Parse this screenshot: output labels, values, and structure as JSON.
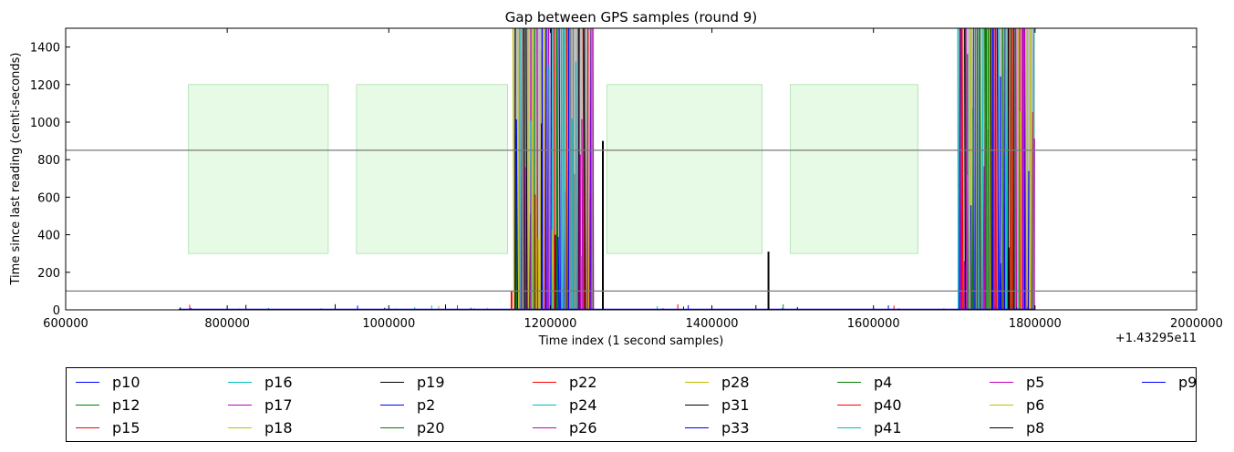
{
  "chart_data": {
    "type": "line",
    "title": "Gap between GPS samples (round 9)",
    "xlabel": "Time index (1 second samples)",
    "ylabel": "Time since last reading (centi-seconds)",
    "x_offset_label": "+1.43295e11",
    "xlim": [
      600000,
      2000000
    ],
    "ylim": [
      0,
      1500
    ],
    "x_ticks": [
      600000,
      800000,
      1000000,
      1200000,
      1400000,
      1600000,
      1800000,
      2000000
    ],
    "x_tick_labels": [
      "600000",
      "800000",
      "1000000",
      "1200000",
      "1400000",
      "1600000",
      "1800000",
      "2000000"
    ],
    "y_ticks": [
      0,
      200,
      400,
      600,
      800,
      1000,
      1200,
      1400
    ],
    "y_tick_labels": [
      "0",
      "200",
      "400",
      "600",
      "800",
      "1000",
      "1200",
      "1400"
    ],
    "horizontal_lines": [
      850,
      100
    ],
    "shaded_regions": [
      {
        "x0": 752000,
        "x1": 925000,
        "y0": 300,
        "y1": 1200
      },
      {
        "x0": 960000,
        "x1": 1147000,
        "y0": 300,
        "y1": 1200
      },
      {
        "x0": 1270000,
        "x1": 1462000,
        "y0": 300,
        "y1": 1200
      },
      {
        "x0": 1497000,
        "x1": 1655000,
        "y0": 300,
        "y1": 1200
      }
    ],
    "dense_regions": [
      {
        "x0": 1155000,
        "x1": 1254000
      },
      {
        "x0": 1705000,
        "x1": 1800000
      }
    ],
    "spikes": [
      {
        "series": "p19",
        "x": 1265000,
        "y": 900
      },
      {
        "series": "p31",
        "x": 1470000,
        "y": 310
      },
      {
        "series": "p40",
        "x": 1152000,
        "y": 100
      }
    ],
    "legend_position": "below",
    "series": [
      {
        "name": "p10",
        "color": "#0000ff"
      },
      {
        "name": "p12",
        "color": "#008000"
      },
      {
        "name": "p15",
        "color": "#ff0000"
      },
      {
        "name": "p16",
        "color": "#00bfbf"
      },
      {
        "name": "p17",
        "color": "#bf00bf"
      },
      {
        "name": "p18",
        "color": "#bfbf00"
      },
      {
        "name": "p19",
        "color": "#000000"
      },
      {
        "name": "p2",
        "color": "#0000ff"
      },
      {
        "name": "p20",
        "color": "#008000"
      },
      {
        "name": "p22",
        "color": "#ff0000"
      },
      {
        "name": "p24",
        "color": "#00bfbf"
      },
      {
        "name": "p26",
        "color": "#bf00bf"
      },
      {
        "name": "p28",
        "color": "#bfbf00"
      },
      {
        "name": "p31",
        "color": "#000000"
      },
      {
        "name": "p33",
        "color": "#0000ff"
      },
      {
        "name": "p4",
        "color": "#008000"
      },
      {
        "name": "p40",
        "color": "#ff0000"
      },
      {
        "name": "p41",
        "color": "#00bfbf"
      },
      {
        "name": "p5",
        "color": "#bf00bf"
      },
      {
        "name": "p6",
        "color": "#bfbf00"
      },
      {
        "name": "p8",
        "color": "#000000"
      },
      {
        "name": "p9",
        "color": "#0000ff"
      }
    ]
  }
}
